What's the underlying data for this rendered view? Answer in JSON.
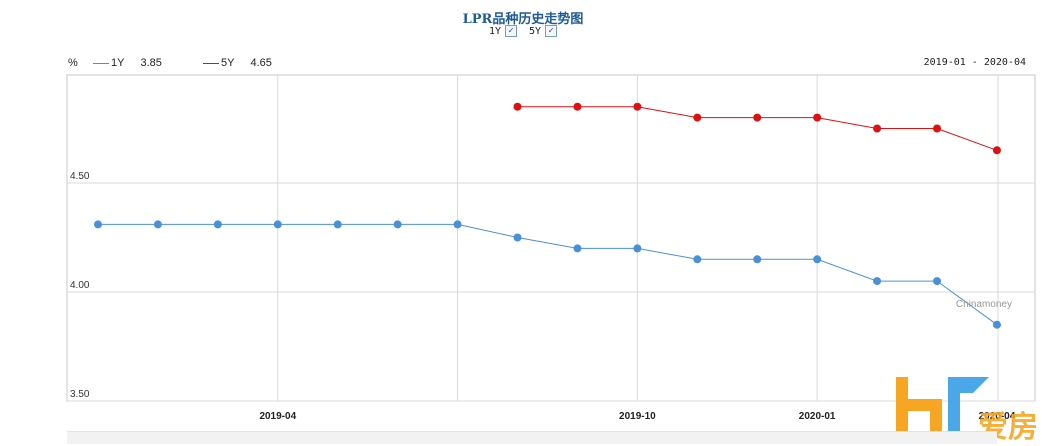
{
  "header": {
    "title": "LPR品种历史走势图",
    "toggles": [
      {
        "label": "1Y",
        "checked": true
      },
      {
        "label": "5Y",
        "checked": true
      }
    ]
  },
  "legend_bar": {
    "unit": "%",
    "range_text": "2019-01 - 2020-04"
  },
  "watermark": {
    "source": "Chinamoney",
    "brand": "爱房",
    "colors": {
      "orange": "#f6a623",
      "blue": "#4aa8e8"
    }
  },
  "chart_data": {
    "type": "line",
    "x": [
      "2019-01",
      "2019-02",
      "2019-03",
      "2019-04",
      "2019-05",
      "2019-06",
      "2019-07",
      "2019-08",
      "2019-09",
      "2019-10",
      "2019-11",
      "2019-12",
      "2020-01",
      "2020-02",
      "2020-03",
      "2020-04"
    ],
    "xticks": [
      "2019-04",
      "2019-10",
      "2020-01",
      "2020-04"
    ],
    "yticks": [
      "3.50",
      "4.00",
      "4.50"
    ],
    "ylim": [
      3.5,
      5.0
    ],
    "grid": true,
    "legend_position": "top-left",
    "series": [
      {
        "name": "1Y",
        "latest": "3.85",
        "color": "#4a90d9",
        "values": [
          4.31,
          4.31,
          4.31,
          4.31,
          4.31,
          4.31,
          4.31,
          4.25,
          4.2,
          4.2,
          4.15,
          4.15,
          4.15,
          4.05,
          4.05,
          3.85
        ]
      },
      {
        "name": "5Y",
        "latest": "4.65",
        "color": "#e01010",
        "values": [
          null,
          null,
          null,
          null,
          null,
          null,
          null,
          4.85,
          4.85,
          4.85,
          4.8,
          4.8,
          4.8,
          4.75,
          4.75,
          4.65
        ]
      }
    ]
  }
}
